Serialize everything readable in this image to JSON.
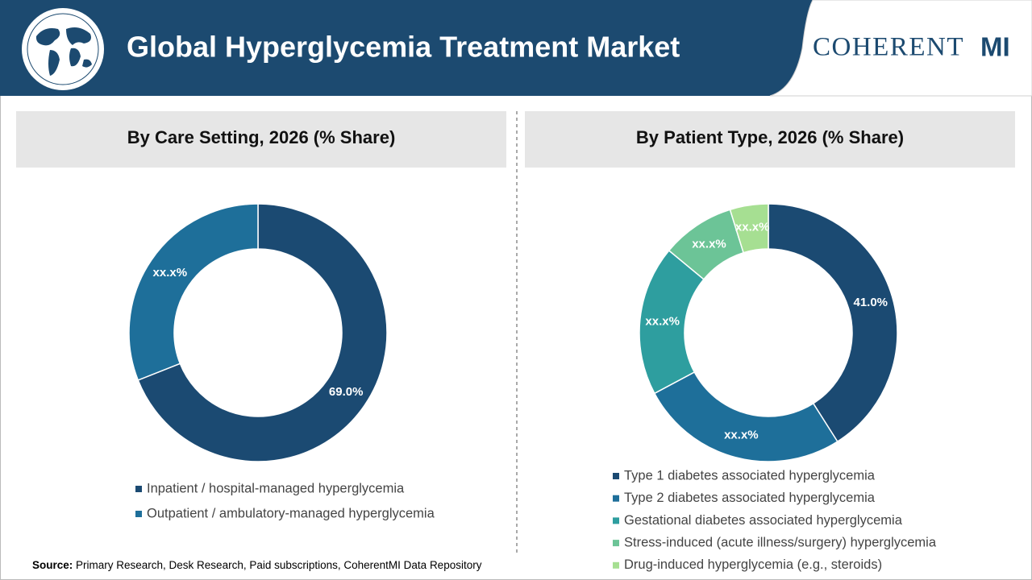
{
  "header": {
    "title": "Global Hyperglycemia Treatment Market",
    "logo_main": "COHERENT",
    "logo_accent": "MI"
  },
  "chart_data": [
    {
      "type": "donut",
      "title": "By Care Setting, 2026 (% Share)",
      "categories": [
        "Inpatient / hospital-managed hyperglycemia",
        "Outpatient / ambulatory-managed hyperglycemia"
      ],
      "values": [
        69.0,
        31.0
      ],
      "value_labels": [
        "69.0%",
        "xx.x%"
      ],
      "colors": [
        "#1b4a72",
        "#1e6f9a"
      ]
    },
    {
      "type": "donut",
      "title": "By Patient Type, 2026 (% Share)",
      "categories": [
        "Type 1 diabetes associated hyperglycemia",
        "Type 2 diabetes associated hyperglycemia",
        "Gestational diabetes associated hyperglycemia",
        "Stress-induced (acute illness/surgery) hyperglycemia",
        "Drug-induced hyperglycemia (e.g., steroids)"
      ],
      "values": [
        41.0,
        26.2,
        18.8,
        9.2,
        4.8
      ],
      "value_labels": [
        "41.0%",
        "xx.x%",
        "xx.x%",
        "xx.x%",
        "xx.x%"
      ],
      "colors": [
        "#1b4a72",
        "#1e6f9a",
        "#2e9e9f",
        "#6cc497",
        "#a6df92"
      ]
    }
  ],
  "source": {
    "label": "Source:",
    "text": " Primary Research, Desk Research, Paid subscriptions, CoherentMI Data Repository"
  }
}
